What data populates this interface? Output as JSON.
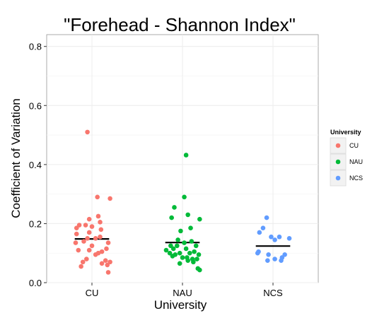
{
  "chart_data": {
    "type": "scatter",
    "title": "\"Forehead - Shannon Index\"",
    "xlabel": "University",
    "ylabel": "Coefficient of Variation",
    "categories": [
      "CU",
      "NAU",
      "NCS"
    ],
    "ylim": [
      0,
      0.84
    ],
    "yticks": [
      0.0,
      0.2,
      0.4,
      0.6,
      0.8
    ],
    "ytick_labels": [
      "0.0",
      "0.2",
      "0.4",
      "0.6",
      "0.8"
    ],
    "grid": true,
    "legend": {
      "title": "University",
      "placement": "right",
      "entries": [
        "CU",
        "NAU",
        "NCS"
      ]
    },
    "colors": {
      "CU": "#F8766D",
      "NAU": "#00BA38",
      "NCS": "#619CFF"
    },
    "means": [
      {
        "category": "CU",
        "value": 0.148
      },
      {
        "category": "NAU",
        "value": 0.136
      },
      {
        "category": "NCS",
        "value": 0.124
      }
    ],
    "series": [
      {
        "name": "CU",
        "points": [
          {
            "x": -0.05,
            "y": 0.51
          },
          {
            "x": 0.06,
            "y": 0.29
          },
          {
            "x": 0.2,
            "y": 0.285
          },
          {
            "x": 0.07,
            "y": 0.225
          },
          {
            "x": -0.03,
            "y": 0.215
          },
          {
            "x": 0.09,
            "y": 0.205
          },
          {
            "x": -0.14,
            "y": 0.195
          },
          {
            "x": -0.07,
            "y": 0.195
          },
          {
            "x": 0.0,
            "y": 0.19
          },
          {
            "x": 0.1,
            "y": 0.18
          },
          {
            "x": -0.17,
            "y": 0.185
          },
          {
            "x": -0.03,
            "y": 0.17
          },
          {
            "x": -0.17,
            "y": 0.165
          },
          {
            "x": 0.09,
            "y": 0.155
          },
          {
            "x": -0.05,
            "y": 0.15
          },
          {
            "x": 0.04,
            "y": 0.15
          },
          {
            "x": -0.09,
            "y": 0.14
          },
          {
            "x": 0.18,
            "y": 0.135
          },
          {
            "x": -0.18,
            "y": 0.135
          },
          {
            "x": 0.0,
            "y": 0.125
          },
          {
            "x": 0.16,
            "y": 0.115
          },
          {
            "x": -0.15,
            "y": 0.11
          },
          {
            "x": -0.03,
            "y": 0.11
          },
          {
            "x": 0.11,
            "y": 0.105
          },
          {
            "x": 0.07,
            "y": 0.1
          },
          {
            "x": 0.04,
            "y": 0.095
          },
          {
            "x": -0.06,
            "y": 0.08
          },
          {
            "x": 0.15,
            "y": 0.075
          },
          {
            "x": 0.2,
            "y": 0.07
          },
          {
            "x": 0.11,
            "y": 0.065
          },
          {
            "x": 0.17,
            "y": 0.06
          },
          {
            "x": -0.1,
            "y": 0.07
          },
          {
            "x": -0.12,
            "y": 0.055
          },
          {
            "x": 0.18,
            "y": 0.035
          }
        ]
      },
      {
        "name": "NAU",
        "points": [
          {
            "x": 0.04,
            "y": 0.432
          },
          {
            "x": 0.02,
            "y": 0.29
          },
          {
            "x": -0.09,
            "y": 0.255
          },
          {
            "x": 0.06,
            "y": 0.23
          },
          {
            "x": -0.12,
            "y": 0.22
          },
          {
            "x": 0.19,
            "y": 0.215
          },
          {
            "x": 0.09,
            "y": 0.185
          },
          {
            "x": -0.02,
            "y": 0.175
          },
          {
            "x": -0.05,
            "y": 0.145
          },
          {
            "x": 0.1,
            "y": 0.14
          },
          {
            "x": 0.02,
            "y": 0.135
          },
          {
            "x": -0.13,
            "y": 0.125
          },
          {
            "x": -0.06,
            "y": 0.125
          },
          {
            "x": 0.15,
            "y": 0.125
          },
          {
            "x": -0.1,
            "y": 0.115
          },
          {
            "x": 0.04,
            "y": 0.115
          },
          {
            "x": -0.18,
            "y": 0.11
          },
          {
            "x": 0.13,
            "y": 0.105
          },
          {
            "x": -0.14,
            "y": 0.1
          },
          {
            "x": -0.03,
            "y": 0.1
          },
          {
            "x": 0.08,
            "y": 0.1
          },
          {
            "x": -0.08,
            "y": 0.095
          },
          {
            "x": 0.18,
            "y": 0.095
          },
          {
            "x": -0.11,
            "y": 0.09
          },
          {
            "x": 0.0,
            "y": 0.085
          },
          {
            "x": 0.05,
            "y": 0.085
          },
          {
            "x": 0.11,
            "y": 0.08
          },
          {
            "x": 0.16,
            "y": 0.08
          },
          {
            "x": 0.06,
            "y": 0.075
          },
          {
            "x": 0.12,
            "y": 0.07
          },
          {
            "x": -0.03,
            "y": 0.065
          },
          {
            "x": 0.17,
            "y": 0.048
          },
          {
            "x": 0.19,
            "y": 0.043
          }
        ]
      },
      {
        "name": "NCS",
        "points": [
          {
            "x": -0.07,
            "y": 0.22
          },
          {
            "x": -0.11,
            "y": 0.185
          },
          {
            "x": -0.15,
            "y": 0.17
          },
          {
            "x": 0.07,
            "y": 0.155
          },
          {
            "x": -0.02,
            "y": 0.155
          },
          {
            "x": 0.18,
            "y": 0.15
          },
          {
            "x": 0.02,
            "y": 0.145
          },
          {
            "x": -0.16,
            "y": 0.105
          },
          {
            "x": -0.17,
            "y": 0.1
          },
          {
            "x": 0.13,
            "y": 0.095
          },
          {
            "x": -0.05,
            "y": 0.095
          },
          {
            "x": 0.1,
            "y": 0.085
          },
          {
            "x": 0.02,
            "y": 0.08
          },
          {
            "x": -0.06,
            "y": 0.075
          },
          {
            "x": 0.09,
            "y": 0.075
          }
        ]
      }
    ]
  }
}
